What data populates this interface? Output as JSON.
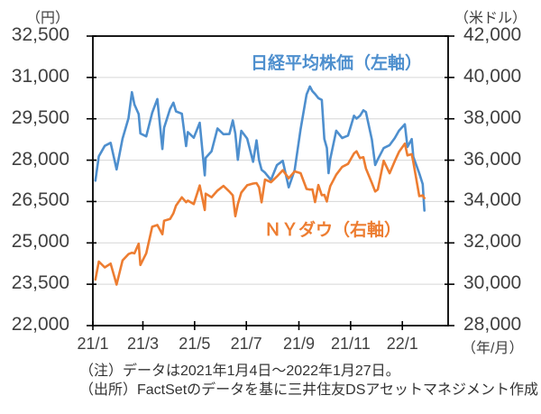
{
  "header": {
    "left_axis_unit": "（円）",
    "right_axis_unit": "（米ドル）",
    "x_axis_unit": "（年/月）"
  },
  "legend": {
    "nikkei": "日経平均株価（左軸）",
    "dow": "ＮＹダウ（右軸）"
  },
  "notes": {
    "line1": "（注）データは2021年1月4日～2022年1月27日。",
    "line2": "（出所）FactSetのデータを基に三井住友DSアセットマネジメント作成"
  },
  "colors": {
    "nikkei_line": "#4E8FCE",
    "dow_line": "#ED7D31",
    "grid": "#D6D6D6",
    "border": "#000000",
    "text": "#404040"
  },
  "chart_data": {
    "type": "line",
    "title": "",
    "grid": true,
    "legend_position": "inline",
    "x_range": [
      "2021-01-01",
      "2022-02-24"
    ],
    "x_ticks": [
      {
        "label": "21/1",
        "date": "2021-01-01"
      },
      {
        "label": "21/3",
        "date": "2021-03-01"
      },
      {
        "label": "21/5",
        "date": "2021-05-01"
      },
      {
        "label": "21/7",
        "date": "2021-07-01"
      },
      {
        "label": "21/9",
        "date": "2021-09-01"
      },
      {
        "label": "21/11",
        "date": "2021-11-01"
      },
      {
        "label": "22/1",
        "date": "2022-01-01"
      }
    ],
    "left_axis": {
      "unit": "円",
      "min": 22000,
      "max": 32500,
      "tick_step": 1500,
      "tick_labels": [
        "32,500",
        "31,000",
        "29,500",
        "28,000",
        "26,500",
        "25,000",
        "23,500",
        "22,000"
      ]
    },
    "right_axis": {
      "unit": "米ドル",
      "min": 28000,
      "max": 42000,
      "tick_step": 2000,
      "tick_labels": [
        "42,000",
        "40,000",
        "38,000",
        "36,000",
        "34,000",
        "32,000",
        "30,000",
        "28,000"
      ]
    },
    "dates": [
      "2021-01-04",
      "2021-01-08",
      "2021-01-15",
      "2021-01-22",
      "2021-01-29",
      "2021-02-05",
      "2021-02-12",
      "2021-02-16",
      "2021-02-19",
      "2021-02-24",
      "2021-02-26",
      "2021-03-05",
      "2021-03-12",
      "2021-03-18",
      "2021-03-24",
      "2021-03-26",
      "2021-04-02",
      "2021-04-06",
      "2021-04-09",
      "2021-04-16",
      "2021-04-21",
      "2021-04-23",
      "2021-04-30",
      "2021-05-07",
      "2021-05-13",
      "2021-05-14",
      "2021-05-21",
      "2021-05-28",
      "2021-06-04",
      "2021-06-11",
      "2021-06-15",
      "2021-06-18",
      "2021-06-21",
      "2021-06-25",
      "2021-07-02",
      "2021-07-09",
      "2021-07-13",
      "2021-07-16",
      "2021-07-19",
      "2021-07-23",
      "2021-07-30",
      "2021-08-06",
      "2021-08-13",
      "2021-08-20",
      "2021-08-27",
      "2021-09-03",
      "2021-09-10",
      "2021-09-14",
      "2021-09-17",
      "2021-09-20",
      "2021-09-24",
      "2021-09-28",
      "2021-10-01",
      "2021-10-04",
      "2021-10-06",
      "2021-10-08",
      "2021-10-15",
      "2021-10-22",
      "2021-10-29",
      "2021-11-05",
      "2021-11-08",
      "2021-11-12",
      "2021-11-16",
      "2021-11-19",
      "2021-11-26",
      "2021-11-30",
      "2021-12-03",
      "2021-12-10",
      "2021-12-17",
      "2021-12-23",
      "2021-12-28",
      "2022-01-04",
      "2022-01-07",
      "2022-01-12",
      "2022-01-14",
      "2022-01-21",
      "2022-01-25",
      "2022-01-27"
    ],
    "series": [
      {
        "name": "日経平均株価（左軸）",
        "axis": "left",
        "color": "#4E8FCE",
        "values": [
          27258,
          28139,
          28519,
          28631,
          27663,
          28779,
          29520,
          30467,
          30018,
          29671,
          28966,
          28864,
          29718,
          30216,
          28406,
          29177,
          29854,
          30086,
          29768,
          29683,
          28508,
          29020,
          28813,
          29358,
          27448,
          28084,
          28318,
          29149,
          28942,
          28949,
          29441,
          28964,
          28011,
          29066,
          28783,
          27940,
          28718,
          28003,
          27652,
          27548,
          27284,
          27820,
          27977,
          27013,
          27641,
          29128,
          30382,
          30670,
          30500,
          30400,
          30249,
          30184,
          28771,
          28445,
          27529,
          28049,
          29069,
          28805,
          28893,
          29612,
          29507,
          29610,
          29808,
          29746,
          28752,
          27822,
          28030,
          28438,
          28546,
          28799,
          29069,
          29302,
          28479,
          28766,
          28124,
          27522,
          27131,
          26170
        ]
      },
      {
        "name": "ＮＹダウ（右軸）",
        "axis": "right",
        "color": "#ED7D31",
        "values": [
          30224,
          31098,
          30814,
          30997,
          29983,
          31148,
          31458,
          31523,
          31494,
          31962,
          30932,
          31496,
          32779,
          32862,
          32420,
          33073,
          33153,
          33430,
          33801,
          34201,
          33965,
          34043,
          33875,
          34778,
          33588,
          34382,
          34208,
          34529,
          34756,
          34480,
          34299,
          33290,
          33877,
          34434,
          34786,
          34870,
          34889,
          34688,
          33962,
          35062,
          34935,
          35209,
          35515,
          35120,
          35456,
          35369,
          34608,
          34578,
          34585,
          33970,
          34798,
          34300,
          34326,
          34003,
          34417,
          34746,
          35295,
          35677,
          35820,
          36328,
          36432,
          36100,
          36142,
          35602,
          34899,
          34484,
          34580,
          35971,
          35365,
          35950,
          36399,
          36800,
          36232,
          36290,
          35912,
          34265,
          34297,
          34161
        ]
      }
    ]
  }
}
